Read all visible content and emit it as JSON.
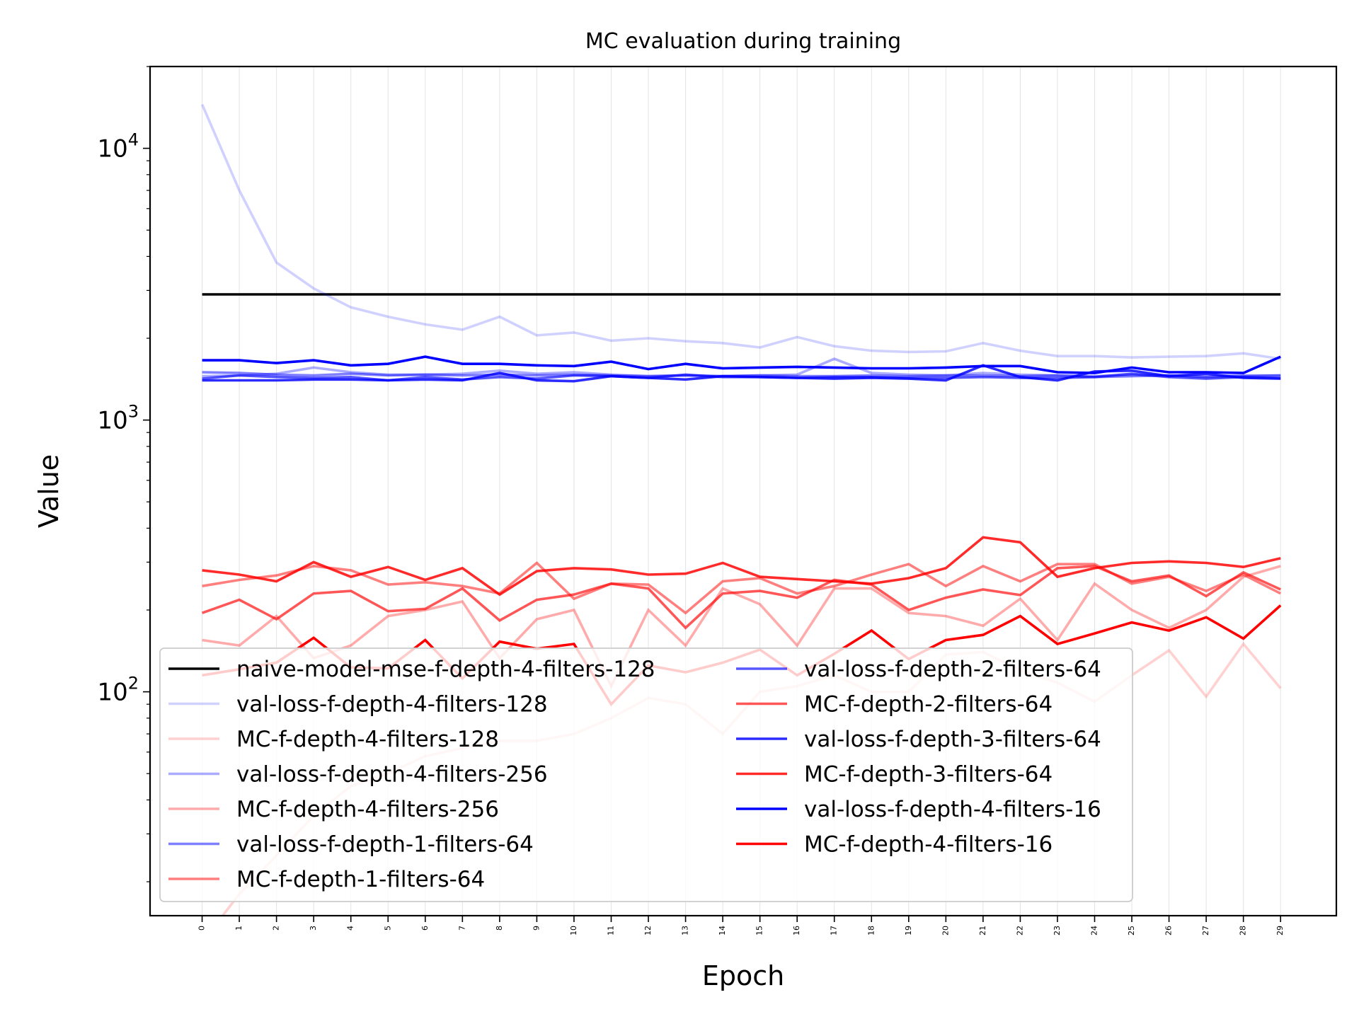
{
  "chart_data": {
    "type": "line",
    "title": "MC evaluation during training",
    "xlabel": "Epoch",
    "ylabel": "Value",
    "yscale": "log",
    "ylim": [
      15,
      20000
    ],
    "xlim": [
      -1.4,
      30.5
    ],
    "grid": "x-only (faint)",
    "legend_placement": "lower-left",
    "legend_columns": 2,
    "x": [
      0,
      1,
      2,
      3,
      4,
      5,
      6,
      7,
      8,
      9,
      10,
      11,
      12,
      13,
      14,
      15,
      16,
      17,
      18,
      19,
      20,
      21,
      22,
      23,
      24,
      25,
      26,
      27,
      28,
      29
    ],
    "xtick_labels": [
      "0",
      "1",
      "2",
      "3",
      "4",
      "5",
      "6",
      "7",
      "8",
      "9",
      "10",
      "11",
      "12",
      "13",
      "14",
      "15",
      "16",
      "17",
      "18",
      "19",
      "20",
      "21",
      "22",
      "23",
      "24",
      "25",
      "26",
      "27",
      "28",
      "29"
    ],
    "ytick_labels": [
      {
        "base": "10",
        "exp": "2",
        "value": 100
      },
      {
        "base": "10",
        "exp": "3",
        "value": 1000
      },
      {
        "base": "10",
        "exp": "4",
        "value": 10000
      }
    ],
    "series": [
      {
        "name": "naive-model-mse-f-depth-4-filters-128",
        "color": "#000000",
        "opacity": 1.0,
        "values": [
          2900,
          2900,
          2900,
          2900,
          2900,
          2900,
          2900,
          2900,
          2900,
          2900,
          2900,
          2900,
          2900,
          2900,
          2900,
          2900,
          2900,
          2900,
          2900,
          2900,
          2900,
          2900,
          2900,
          2900,
          2900,
          2900,
          2900,
          2900,
          2900,
          2900
        ]
      },
      {
        "name": "val-loss-f-depth-4-filters-128",
        "color": "#0000ff",
        "opacity": 0.18,
        "values": [
          14500,
          7000,
          3800,
          3050,
          2600,
          2400,
          2250,
          2150,
          2400,
          2050,
          2100,
          1960,
          2000,
          1950,
          1920,
          1850,
          2020,
          1870,
          1800,
          1780,
          1790,
          1920,
          1800,
          1720,
          1720,
          1700,
          1710,
          1720,
          1760,
          1680
        ]
      },
      {
        "name": "MC-f-depth-4-filters-128",
        "color": "#ff0000",
        "opacity": 0.18,
        "values": [
          12,
          18,
          25,
          35,
          45,
          50,
          58,
          62,
          66,
          66,
          70,
          80,
          95,
          90,
          70,
          100,
          105,
          115,
          100,
          100,
          137,
          140,
          120,
          108,
          92,
          115,
          142,
          96,
          150,
          103
        ]
      },
      {
        "name": "val-loss-f-depth-4-filters-256",
        "color": "#0000ff",
        "opacity": 0.33,
        "values": [
          1450,
          1460,
          1480,
          1560,
          1500,
          1470,
          1470,
          1480,
          1520,
          1480,
          1500,
          1470,
          1450,
          1460,
          1450,
          1460,
          1470,
          1680,
          1490,
          1470,
          1460,
          1490,
          1470,
          1460,
          1450,
          1470,
          1460,
          1450,
          1460,
          1460
        ]
      },
      {
        "name": "MC-f-depth-4-filters-256",
        "color": "#ff0000",
        "opacity": 0.33,
        "values": [
          155,
          148,
          190,
          133,
          148,
          190,
          200,
          215,
          133,
          185,
          200,
          105,
          200,
          148,
          240,
          210,
          148,
          240,
          240,
          195,
          190,
          175,
          220,
          155,
          250,
          200,
          172,
          200,
          265,
          290
        ]
      },
      {
        "name": "val-loss-f-depth-1-filters-64",
        "color": "#0000ff",
        "opacity": 0.5,
        "values": [
          1500,
          1490,
          1470,
          1460,
          1480,
          1460,
          1470,
          1460,
          1470,
          1460,
          1470,
          1460,
          1450,
          1460,
          1450,
          1460,
          1450,
          1450,
          1460,
          1450,
          1460,
          1460,
          1450,
          1460,
          1440,
          1450,
          1460,
          1440,
          1450,
          1460
        ]
      },
      {
        "name": "MC-f-depth-1-filters-64",
        "color": "#ff0000",
        "opacity": 0.5,
        "values": [
          245,
          258,
          268,
          290,
          280,
          248,
          253,
          245,
          230,
          298,
          220,
          250,
          248,
          195,
          255,
          262,
          230,
          245,
          270,
          295,
          245,
          290,
          255,
          295,
          295,
          250,
          265,
          235,
          270,
          230
        ]
      },
      {
        "name": "val-loss-f-depth-2-filters-64",
        "color": "#0000ff",
        "opacity": 0.66,
        "values": [
          1420,
          1460,
          1440,
          1430,
          1440,
          1400,
          1440,
          1410,
          1440,
          1420,
          1460,
          1450,
          1430,
          1470,
          1440,
          1440,
          1430,
          1440,
          1440,
          1430,
          1430,
          1440,
          1430,
          1430,
          1440,
          1480,
          1440,
          1420,
          1440,
          1430
        ]
      },
      {
        "name": "MC-f-depth-2-filters-64",
        "color": "#ff0000",
        "opacity": 0.66,
        "values": [
          195,
          218,
          185,
          230,
          235,
          198,
          202,
          240,
          183,
          218,
          228,
          250,
          240,
          172,
          230,
          235,
          222,
          258,
          248,
          200,
          222,
          238,
          227,
          285,
          290,
          255,
          268,
          225,
          275,
          238
        ]
      },
      {
        "name": "val-loss-f-depth-3-filters-64",
        "color": "#0000ff",
        "opacity": 0.83,
        "values": [
          1400,
          1400,
          1400,
          1410,
          1410,
          1400,
          1410,
          1400,
          1490,
          1400,
          1390,
          1450,
          1430,
          1410,
          1450,
          1440,
          1430,
          1420,
          1430,
          1420,
          1400,
          1590,
          1440,
          1400,
          1510,
          1520,
          1450,
          1480,
          1430,
          1420
        ]
      },
      {
        "name": "MC-f-depth-3-filters-64",
        "color": "#ff0000",
        "opacity": 0.83,
        "values": [
          280,
          270,
          255,
          300,
          265,
          288,
          258,
          285,
          228,
          278,
          285,
          282,
          270,
          272,
          298,
          265,
          260,
          255,
          250,
          262,
          285,
          370,
          355,
          265,
          285,
          298,
          302,
          298,
          288,
          310
        ]
      },
      {
        "name": "val-loss-f-depth-4-filters-16",
        "color": "#0000ff",
        "opacity": 1.0,
        "values": [
          1660,
          1660,
          1620,
          1660,
          1590,
          1610,
          1710,
          1610,
          1610,
          1590,
          1580,
          1640,
          1540,
          1610,
          1550,
          1560,
          1570,
          1560,
          1550,
          1550,
          1560,
          1580,
          1580,
          1500,
          1490,
          1560,
          1500,
          1500,
          1490,
          1710
        ]
      },
      {
        "name": "MC-f-depth-4-filters-16",
        "color": "#ff0000",
        "opacity": 1.0,
        "values": [
          115,
          121,
          128,
          158,
          123,
          122,
          155,
          112,
          153,
          144,
          150,
          90,
          125,
          118,
          128,
          143,
          115,
          138,
          168,
          132,
          155,
          162,
          190,
          150,
          164,
          180,
          168,
          188,
          157,
          208
        ]
      }
    ]
  }
}
